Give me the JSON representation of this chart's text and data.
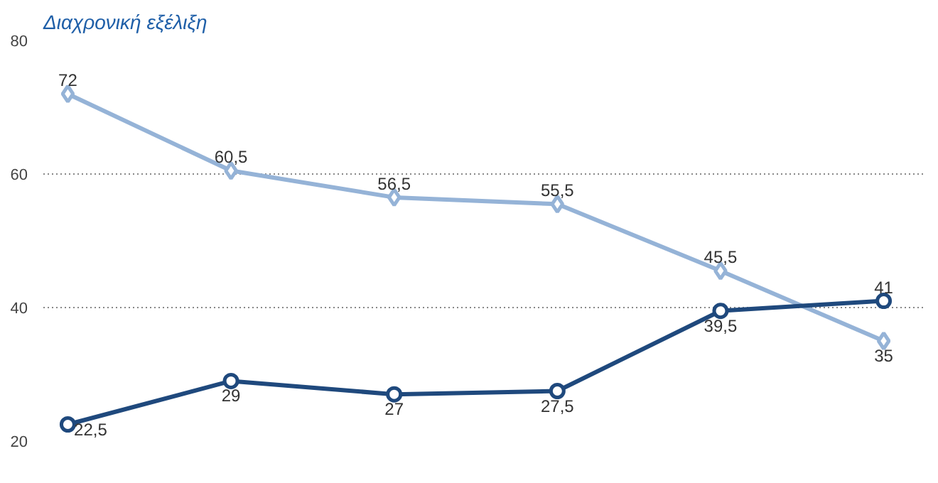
{
  "chart_data": {
    "type": "line",
    "title": "Διαχρονική εξέλιξη",
    "categories": [
      null,
      null,
      null,
      null,
      null,
      null
    ],
    "series": [
      {
        "color": "#95b3d7",
        "marker": "diamond",
        "values": [
          72,
          60.5,
          56.5,
          55.5,
          45.5,
          35
        ],
        "value_labels": [
          "72",
          "60,5",
          "56,5",
          "55,5",
          "45,5",
          "35"
        ]
      },
      {
        "color": "#1f497d",
        "marker": "circle",
        "values": [
          22.5,
          29,
          27,
          27.5,
          39.5,
          41
        ],
        "value_labels": [
          "22,5",
          "29",
          "27",
          "27,5",
          "39,5",
          "41"
        ]
      }
    ],
    "ylim": [
      20,
      80
    ],
    "yticks": [
      20,
      40,
      60,
      80
    ],
    "grid": "y",
    "line_style": "solid"
  }
}
